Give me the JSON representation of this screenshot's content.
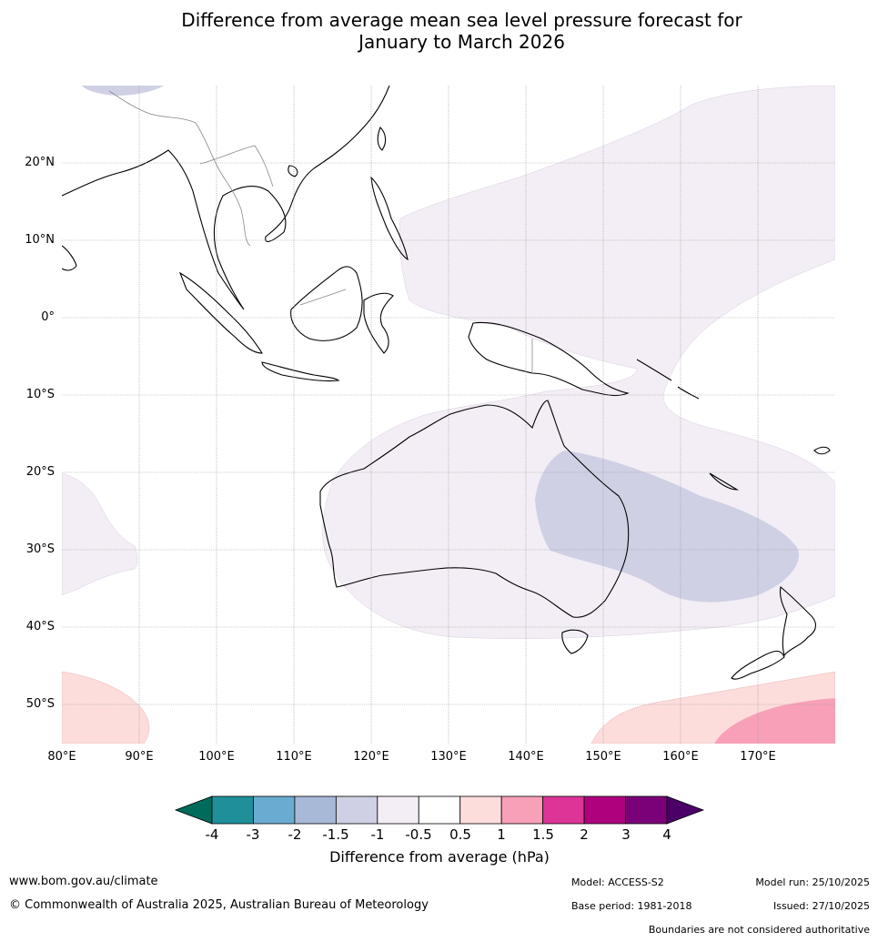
{
  "title": {
    "line1": "Difference from average mean sea level pressure forecast for",
    "line2": "January to March 2026"
  },
  "map": {
    "region": "Australia, Maritime Continent and western Pacific",
    "lat_labels": [
      "20°N",
      "10°N",
      "0°",
      "10°S",
      "20°S",
      "30°S",
      "40°S",
      "50°S"
    ],
    "lon_labels": [
      "80°E",
      "90°E",
      "100°E",
      "110°E",
      "120°E",
      "130°E",
      "140°E",
      "150°E",
      "160°E",
      "170°E"
    ]
  },
  "colorbar": {
    "title": "Difference from average (hPa)",
    "tick_labels": [
      "-4",
      "-3",
      "-2",
      "-1.5",
      "-1",
      "-0.5",
      "0.5",
      "1",
      "1.5",
      "2",
      "3",
      "4"
    ],
    "extend_low_color": "#006b5a",
    "extend_high_color": "#4a0066",
    "colors": [
      "#1f9099",
      "#6aabd2",
      "#a8b9d8",
      "#cfd0e4",
      "#f3eef5",
      "#ffffff",
      "#fddddc",
      "#f8a0b8",
      "#dd3497",
      "#ae017e",
      "#7a0177"
    ]
  },
  "footer": {
    "website": "www.bom.gov.au/climate",
    "copyright": "© Commonwealth of Australia 2025, Australian Bureau of Meteorology",
    "model": "Model: ACCESS-S2",
    "base_period": "Base period: 1981-2018",
    "model_run": "Model run: 25/10/2025",
    "issued": "Issued: 27/10/2025",
    "disclaimer": "Boundaries are not considered authoritative"
  }
}
